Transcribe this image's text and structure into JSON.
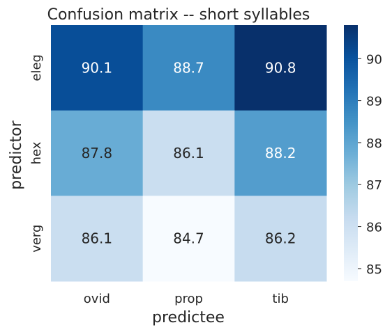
{
  "chart_data": {
    "type": "heatmap",
    "title": "Confusion matrix -- short syllables",
    "xlabel": "predictee",
    "ylabel": "predictor",
    "x_categories": [
      "ovid",
      "prop",
      "tib"
    ],
    "y_categories": [
      "eleg",
      "hex",
      "verg"
    ],
    "values": [
      [
        90.1,
        88.7,
        90.8
      ],
      [
        87.8,
        86.1,
        88.2
      ],
      [
        86.1,
        84.7,
        86.2
      ]
    ],
    "value_labels": [
      [
        "90.1",
        "88.7",
        "90.8"
      ],
      [
        "87.8",
        "86.1",
        "88.2"
      ],
      [
        "86.1",
        "84.7",
        "86.2"
      ]
    ],
    "colormap": "Blues",
    "vmin": 84.7,
    "vmax": 90.8,
    "colorbar_ticks": [
      85,
      86,
      87,
      88,
      89,
      90
    ],
    "colorbar_tick_labels": [
      "85",
      "86",
      "87",
      "88",
      "89",
      "90"
    ],
    "annotation_colors": {
      "light": "#ffffff",
      "dark": "#262626"
    }
  }
}
